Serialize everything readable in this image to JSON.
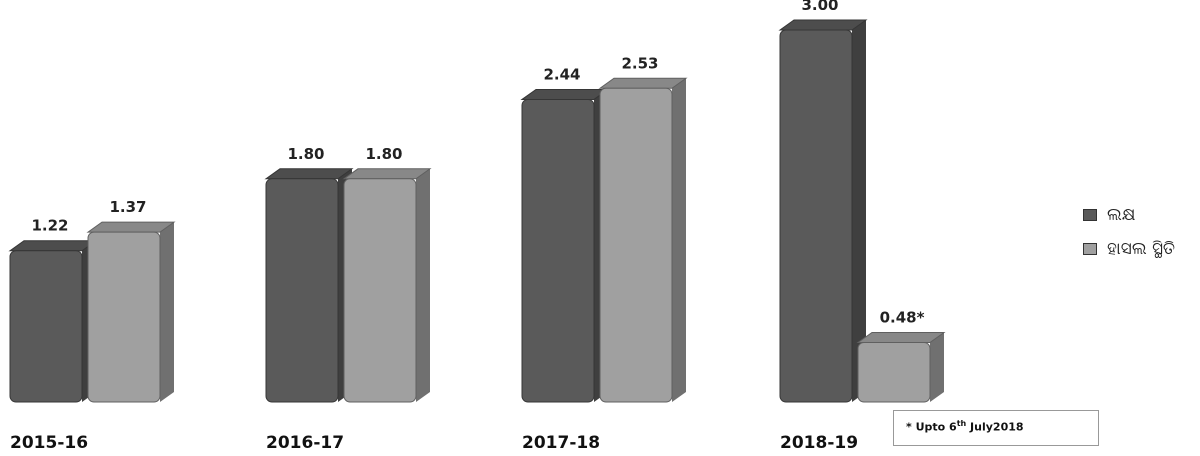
{
  "chart_data": {
    "type": "bar",
    "categories": [
      "2015-16",
      "2016-17",
      "2017-18",
      "2018-19"
    ],
    "series": [
      {
        "name": "ଲକ୍ଷ",
        "values": [
          1.22,
          1.8,
          2.44,
          3.0
        ],
        "labels": [
          "1.22",
          "1.80",
          "2.44",
          "3.00"
        ],
        "color": "#5a5a5a"
      },
      {
        "name": "ହାସଲ ସ୍ଥିତି",
        "values": [
          1.37,
          1.8,
          2.53,
          0.48
        ],
        "labels": [
          "1.37",
          "1.80",
          "2.53",
          "0.48*"
        ],
        "color": "#a0a0a0"
      }
    ],
    "title": "",
    "xlabel": "",
    "ylabel": "",
    "ylim": [
      0,
      3.0
    ],
    "grid": false,
    "legend_position": "right",
    "note": {
      "prefix": "* Upto 6",
      "superscript": "th",
      "suffix": " July2018"
    }
  }
}
